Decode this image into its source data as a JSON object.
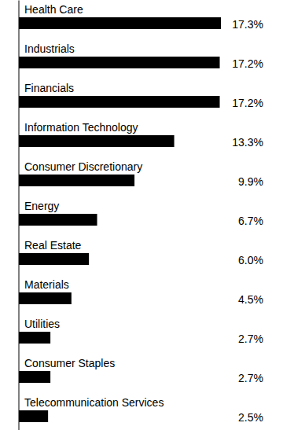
{
  "chart_data": {
    "type": "bar",
    "orientation": "horizontal",
    "categories": [
      "Health Care",
      "Industrials",
      "Financials",
      "Information Technology",
      "Consumer Discretionary",
      "Energy",
      "Real Estate",
      "Materials",
      "Utilities",
      "Consumer Staples",
      "Telecommunication Services"
    ],
    "values": [
      17.3,
      17.2,
      17.2,
      13.3,
      9.9,
      6.7,
      6.0,
      4.5,
      2.7,
      2.7,
      2.5
    ],
    "value_labels": [
      "17.3%",
      "17.2%",
      "17.2%",
      "13.3%",
      "9.9%",
      "6.7%",
      "6.0%",
      "4.5%",
      "2.7%",
      "2.7%",
      "2.5%"
    ],
    "color": "#000000",
    "xlim": [
      0,
      17.3
    ],
    "data_labels": true,
    "tick_labels": false,
    "grid": false
  }
}
